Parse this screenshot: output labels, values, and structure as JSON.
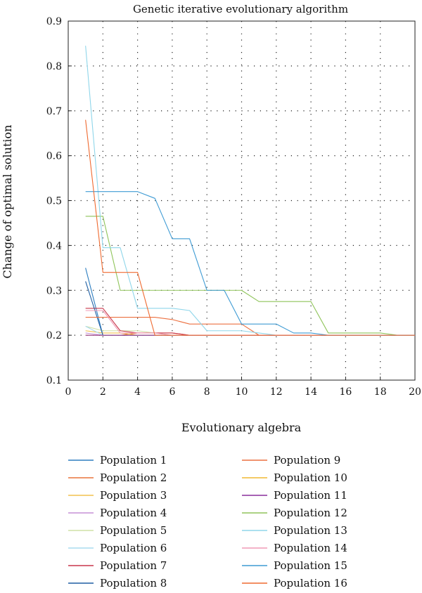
{
  "chart_data": {
    "type": "line",
    "title": "Genetic iterative evolutionary algorithm",
    "xlabel": "Evolutionary algebra",
    "ylabel": "Change of optimal solution",
    "xlim": [
      0,
      20
    ],
    "ylim": [
      0.1,
      0.9
    ],
    "x_ticks": [
      0,
      2,
      4,
      6,
      8,
      10,
      12,
      14,
      16,
      18,
      20
    ],
    "y_ticks": [
      0.1,
      0.2,
      0.3,
      0.4,
      0.5,
      0.6,
      0.7,
      0.8,
      0.9
    ],
    "x_tick_labels": [
      "0",
      "2",
      "4",
      "6",
      "8",
      "10",
      "12",
      "14",
      "16",
      "18",
      "20"
    ],
    "y_tick_labels": [
      "0.1",
      "0.2",
      "0.3",
      "0.4",
      "0.5",
      "0.6",
      "0.7",
      "0.8",
      "0.9"
    ],
    "grid": true,
    "legend_position": "below-plot",
    "x": [
      1,
      2,
      3,
      4,
      5,
      6,
      7,
      8,
      9,
      10,
      11,
      12,
      13,
      14,
      15,
      16,
      17,
      18,
      19,
      20
    ],
    "series": [
      {
        "name": "Population 1",
        "color": "#2f7fc1",
        "values": [
          0.35,
          0.2,
          0.2,
          0.2,
          0.2,
          0.2,
          0.2,
          0.2,
          0.2,
          0.2,
          0.2,
          0.2,
          0.2,
          0.2,
          0.2,
          0.2,
          0.2,
          0.2,
          0.2,
          0.2
        ]
      },
      {
        "name": "Population 2",
        "color": "#e8743b",
        "values": [
          0.2,
          0.2,
          0.2,
          0.205,
          0.205,
          0.205,
          0.2,
          0.2,
          0.2,
          0.2,
          0.2,
          0.2,
          0.2,
          0.2,
          0.2,
          0.2,
          0.2,
          0.2,
          0.2,
          0.2
        ]
      },
      {
        "name": "Population 3",
        "color": "#f2c14e",
        "values": [
          0.21,
          0.205,
          0.205,
          0.2,
          0.2,
          0.2,
          0.2,
          0.2,
          0.2,
          0.2,
          0.2,
          0.2,
          0.2,
          0.2,
          0.2,
          0.2,
          0.2,
          0.2,
          0.2,
          0.2
        ]
      },
      {
        "name": "Population 4",
        "color": "#c58fd6",
        "values": [
          0.205,
          0.2,
          0.2,
          0.2,
          0.2,
          0.2,
          0.2,
          0.2,
          0.2,
          0.2,
          0.2,
          0.2,
          0.2,
          0.2,
          0.2,
          0.2,
          0.2,
          0.2,
          0.2,
          0.2
        ]
      },
      {
        "name": "Population 5",
        "color": "#cfe0a5",
        "values": [
          0.22,
          0.21,
          0.21,
          0.21,
          0.205,
          0.2,
          0.2,
          0.2,
          0.2,
          0.2,
          0.2,
          0.2,
          0.2,
          0.2,
          0.2,
          0.2,
          0.2,
          0.2,
          0.2,
          0.2
        ]
      },
      {
        "name": "Population 6",
        "color": "#a9dcef",
        "values": [
          0.22,
          0.2,
          0.2,
          0.2,
          0.2,
          0.2,
          0.2,
          0.2,
          0.2,
          0.2,
          0.2,
          0.2,
          0.2,
          0.2,
          0.2,
          0.2,
          0.2,
          0.2,
          0.2,
          0.2
        ]
      },
      {
        "name": "Population 7",
        "color": "#c8374b",
        "values": [
          0.26,
          0.26,
          0.21,
          0.205,
          0.205,
          0.205,
          0.2,
          0.2,
          0.2,
          0.2,
          0.2,
          0.2,
          0.2,
          0.2,
          0.2,
          0.2,
          0.2,
          0.2,
          0.2,
          0.2
        ]
      },
      {
        "name": "Population 8",
        "color": "#1f5fa3",
        "values": [
          0.32,
          0.2,
          0.2,
          0.2,
          0.2,
          0.2,
          0.2,
          0.2,
          0.2,
          0.2,
          0.2,
          0.2,
          0.2,
          0.2,
          0.2,
          0.2,
          0.2,
          0.2,
          0.2,
          0.2
        ]
      },
      {
        "name": "Population 9",
        "color": "#ec7040",
        "values": [
          0.24,
          0.24,
          0.24,
          0.24,
          0.24,
          0.235,
          0.225,
          0.225,
          0.225,
          0.225,
          0.2,
          0.2,
          0.2,
          0.2,
          0.2,
          0.2,
          0.2,
          0.2,
          0.2,
          0.2
        ]
      },
      {
        "name": "Population 10",
        "color": "#f0b834",
        "values": [
          0.2,
          0.2,
          0.2,
          0.2,
          0.2,
          0.2,
          0.2,
          0.2,
          0.2,
          0.2,
          0.2,
          0.2,
          0.2,
          0.2,
          0.2,
          0.2,
          0.2,
          0.2,
          0.2,
          0.2
        ]
      },
      {
        "name": "Population 11",
        "color": "#8a2f9c",
        "values": [
          0.2,
          0.2,
          0.2,
          0.2,
          0.2,
          0.2,
          0.2,
          0.2,
          0.2,
          0.2,
          0.2,
          0.2,
          0.2,
          0.2,
          0.2,
          0.2,
          0.2,
          0.2,
          0.2,
          0.2
        ]
      },
      {
        "name": "Population 12",
        "color": "#8fc45a",
        "values": [
          0.465,
          0.465,
          0.3,
          0.3,
          0.3,
          0.3,
          0.3,
          0.3,
          0.3,
          0.3,
          0.275,
          0.275,
          0.275,
          0.275,
          0.205,
          0.205,
          0.205,
          0.205,
          0.2,
          0.2
        ]
      },
      {
        "name": "Population 13",
        "color": "#8fd6ea",
        "values": [
          0.845,
          0.395,
          0.395,
          0.26,
          0.26,
          0.26,
          0.255,
          0.21,
          0.21,
          0.21,
          0.205,
          0.2,
          0.2,
          0.2,
          0.2,
          0.2,
          0.2,
          0.2,
          0.2,
          0.2
        ]
      },
      {
        "name": "Population 14",
        "color": "#f09ab6",
        "values": [
          0.255,
          0.255,
          0.205,
          0.205,
          0.205,
          0.2,
          0.2,
          0.2,
          0.2,
          0.2,
          0.2,
          0.2,
          0.2,
          0.2,
          0.2,
          0.2,
          0.2,
          0.2,
          0.2,
          0.2
        ]
      },
      {
        "name": "Population 15",
        "color": "#3e9bd4",
        "values": [
          0.52,
          0.52,
          0.52,
          0.52,
          0.505,
          0.415,
          0.415,
          0.3,
          0.3,
          0.225,
          0.225,
          0.225,
          0.205,
          0.205,
          0.2,
          0.2,
          0.2,
          0.2,
          0.2,
          0.2
        ]
      },
      {
        "name": "Population 16",
        "color": "#ef6a30",
        "values": [
          0.68,
          0.34,
          0.34,
          0.34,
          0.2,
          0.2,
          0.2,
          0.2,
          0.2,
          0.2,
          0.2,
          0.2,
          0.2,
          0.2,
          0.2,
          0.2,
          0.2,
          0.2,
          0.2,
          0.2
        ]
      }
    ]
  }
}
